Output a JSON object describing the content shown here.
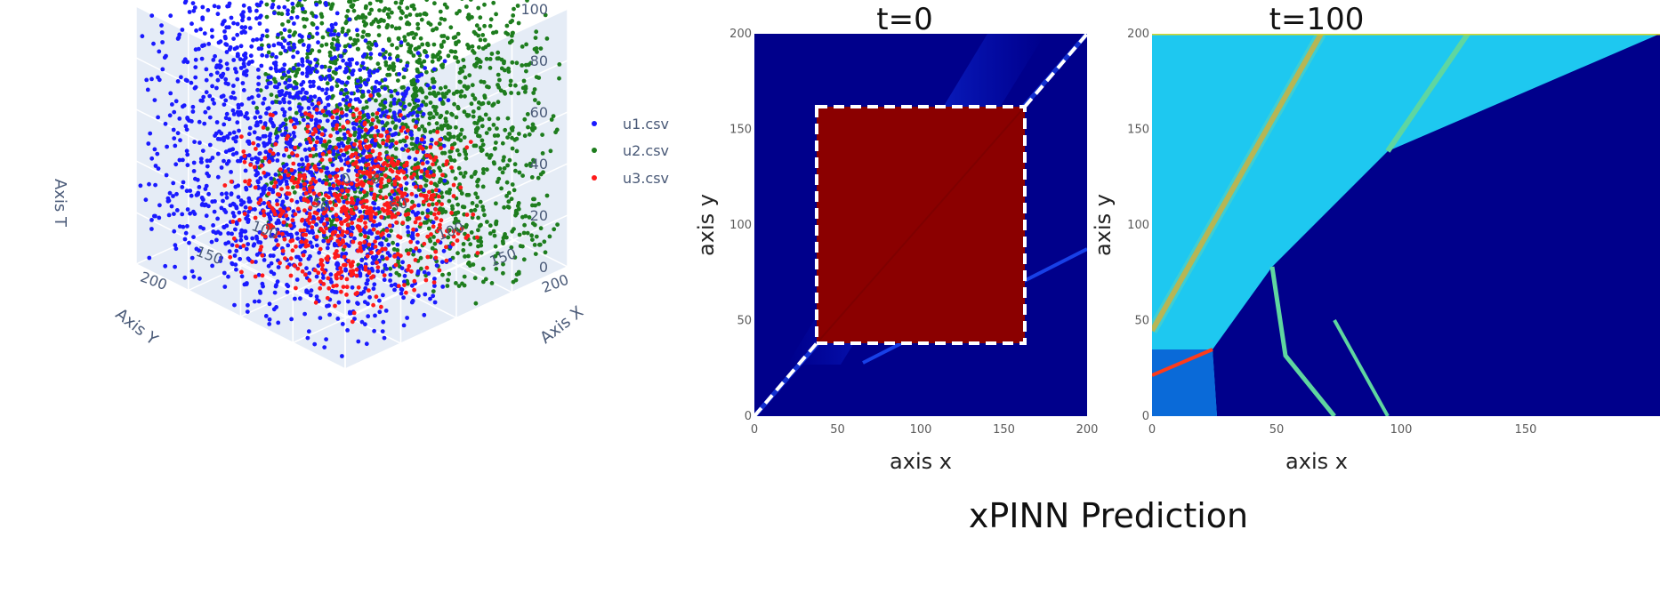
{
  "caption": "xPINN Prediction",
  "chart_data": [
    {
      "type": "scatter",
      "subtype": "3d",
      "axes": {
        "x": {
          "label": "Axis X",
          "ticks": [
            "0",
            "50",
            "100",
            "150",
            "200"
          ],
          "range": [
            0,
            200
          ]
        },
        "y": {
          "label": "Axis Y",
          "ticks": [
            "0",
            "50",
            "100",
            "150",
            "200"
          ],
          "range": [
            0,
            200
          ]
        },
        "t": {
          "label": "Axis T",
          "ticks": [
            "0",
            "20",
            "40",
            "60",
            "80",
            "100"
          ],
          "range": [
            0,
            100
          ]
        }
      },
      "legend": {
        "placement": "top-right",
        "entries": [
          {
            "name": "u1.csv",
            "color": "#1a1aff"
          },
          {
            "name": "u2.csv",
            "color": "#1e7d1e"
          },
          {
            "name": "u3.csv",
            "color": "#ff1a1a"
          }
        ]
      },
      "series": [
        {
          "name": "u1.csv",
          "color": "#1a1aff",
          "x_range": [
            100,
            200
          ],
          "y_range": [
            0,
            200
          ],
          "t_range": [
            0,
            100
          ]
        },
        {
          "name": "u2.csv",
          "color": "#1e7d1e",
          "x_range": [
            0,
            100
          ],
          "y_range": [
            0,
            200
          ],
          "t_range": [
            0,
            100
          ]
        },
        {
          "name": "u3.csv",
          "color": "#ff1a1a",
          "x_range": [
            40,
            160
          ],
          "y_range": [
            40,
            160
          ],
          "t_range": [
            0,
            50
          ]
        }
      ],
      "grid": true
    },
    {
      "type": "heatmap",
      "title": "t=0",
      "xlabel": "axis x",
      "ylabel": "axis y",
      "xticks": [
        "0",
        "50",
        "100",
        "150",
        "200"
      ],
      "yticks": [
        "0",
        "50",
        "100",
        "150",
        "200"
      ],
      "xlim": [
        0,
        200
      ],
      "ylim": [
        0,
        200
      ],
      "background_color": "#00008b",
      "region": {
        "x": [
          38,
          162
        ],
        "y": [
          38,
          162
        ],
        "color": "#8b0000"
      },
      "dashed_outline": true
    },
    {
      "type": "heatmap",
      "title": "t=100",
      "xlabel": "axis x",
      "ylabel": "axis y",
      "xticks": [
        "0",
        "50",
        "100",
        "150"
      ],
      "yticks": [
        "0",
        "50",
        "100",
        "150",
        "200"
      ],
      "xlim": [
        0,
        150
      ],
      "ylim": [
        0,
        200
      ],
      "colors": {
        "background": "#1ec8f0",
        "dark": "#00008b",
        "stripe": "#d7a52b",
        "edge": "#5fd6a0"
      }
    }
  ]
}
